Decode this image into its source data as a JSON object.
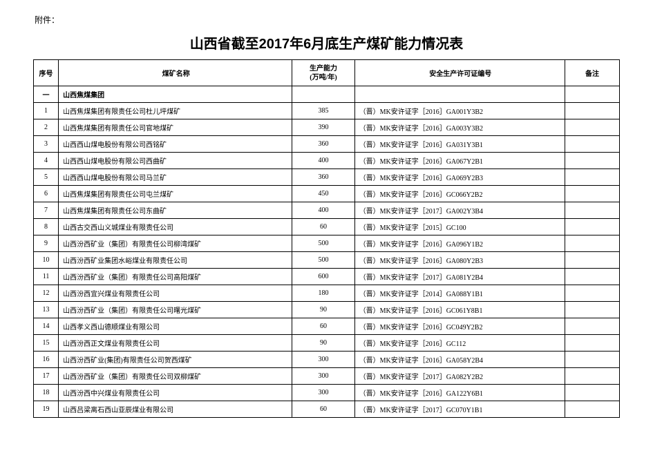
{
  "attachment_label": "附件：",
  "title": "山西省截至2017年6月底生产煤矿能力情况表",
  "columns": {
    "idx": "序号",
    "name": "煤矿名称",
    "capacity": "生产能力\n(万吨/年)",
    "cert": "安全生产许可证编号",
    "note": "备注"
  },
  "group": {
    "idx": "一",
    "name": "山西焦煤集团"
  },
  "rows": [
    {
      "idx": "1",
      "name": "山西焦煤集团有限责任公司杜儿坪煤矿",
      "cap": "385",
      "cert": "（晋）MK安许证字［2016］GA001Y3B2",
      "note": ""
    },
    {
      "idx": "2",
      "name": "山西焦煤集团有限责任公司官地煤矿",
      "cap": "390",
      "cert": "（晋）MK安许证字［2016］GA003Y3B2",
      "note": ""
    },
    {
      "idx": "3",
      "name": "山西西山煤电股份有限公司西铭矿",
      "cap": "360",
      "cert": "（晋）MK安许证字［2016］GA031Y3B1",
      "note": ""
    },
    {
      "idx": "4",
      "name": "山西西山煤电股份有限公司西曲矿",
      "cap": "400",
      "cert": "（晋）MK安许证字［2016］GA067Y2B1",
      "note": ""
    },
    {
      "idx": "5",
      "name": "山西西山煤电股份有限公司马兰矿",
      "cap": "360",
      "cert": "（晋）MK安许证字［2016］GA069Y2B3",
      "note": ""
    },
    {
      "idx": "6",
      "name": "山西焦煤集团有限责任公司屯兰煤矿",
      "cap": "450",
      "cert": "（晋）MK安许证字［2016］GC066Y2B2",
      "note": ""
    },
    {
      "idx": "7",
      "name": "山西焦煤集团有限责任公司东曲矿",
      "cap": "400",
      "cert": "（晋）MK安许证字［2017］GA002Y3B4",
      "note": ""
    },
    {
      "idx": "8",
      "name": "山西古交西山义城煤业有限责任公司",
      "cap": "60",
      "cert": "（晋）MK安许证字［2015］GC100",
      "note": ""
    },
    {
      "idx": "9",
      "name": "山西汾西矿业（集团）有限责任公司柳湾煤矿",
      "cap": "500",
      "cert": "（晋）MK安许证字［2016］GA096Y1B2",
      "note": ""
    },
    {
      "idx": "10",
      "name": "山西汾西矿业集团水峪煤业有限责任公司",
      "cap": "500",
      "cert": "（晋）MK安许证字［2016］GA080Y2B3",
      "note": ""
    },
    {
      "idx": "11",
      "name": "山西汾西矿业（集团）有限责任公司高阳煤矿",
      "cap": "600",
      "cert": "（晋）MK安许证字［2017］GA081Y2B4",
      "note": ""
    },
    {
      "idx": "12",
      "name": "山西汾西宜兴煤业有限责任公司",
      "cap": "180",
      "cert": "（晋）MK安许证字［2014］GA088Y1B1",
      "note": ""
    },
    {
      "idx": "13",
      "name": "山西汾西矿业（集团）有限责任公司曙光煤矿",
      "cap": "90",
      "cert": "（晋）MK安许证字［2016］GC061Y8B1",
      "note": ""
    },
    {
      "idx": "14",
      "name": "山西孝义西山德顺煤业有限公司",
      "cap": "60",
      "cert": "（晋）MK安许证字［2016］GC049Y2B2",
      "note": ""
    },
    {
      "idx": "15",
      "name": "山西汾西正文煤业有限责任公司",
      "cap": "90",
      "cert": "（晋）MK安许证字［2016］GC112",
      "note": ""
    },
    {
      "idx": "16",
      "name": "山西汾西矿业(集团)有限责任公司贺西煤矿",
      "cap": "300",
      "cert": "（晋）MK安许证字［2016］GA058Y2B4",
      "note": ""
    },
    {
      "idx": "17",
      "name": "山西汾西矿业（集团）有限责任公司双柳煤矿",
      "cap": "300",
      "cert": "（晋）MK安许证字［2017］GA082Y2B2",
      "note": ""
    },
    {
      "idx": "18",
      "name": "山西汾西中兴煤业有限责任公司",
      "cap": "300",
      "cert": "（晋）MK安许证字［2016］GA122Y6B1",
      "note": ""
    },
    {
      "idx": "19",
      "name": "山西吕梁离石西山亚辰煤业有限公司",
      "cap": "60",
      "cert": "（晋）MK安许证字［2017］GC070Y1B1",
      "note": ""
    }
  ]
}
